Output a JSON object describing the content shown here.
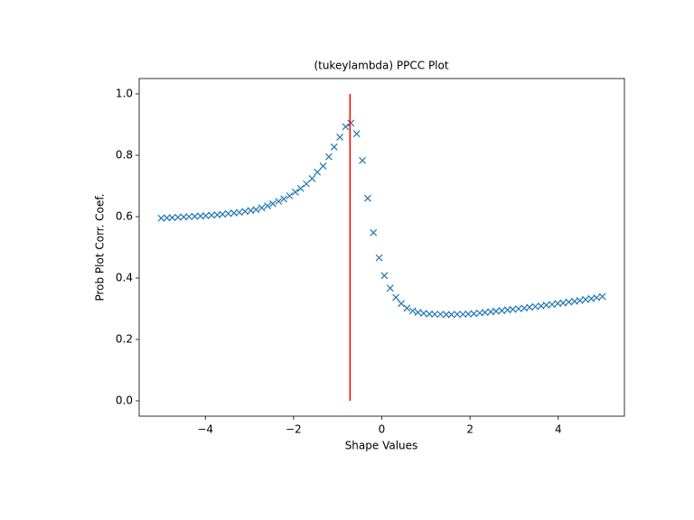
{
  "chart_data": {
    "type": "scatter",
    "title": "(tukeylambda) PPCC Plot",
    "x_label": "Shape Values",
    "y_label": "Prob Plot Corr. Coef.",
    "xlim": [
      -5.5,
      5.5
    ],
    "ylim": [
      -0.05,
      1.05
    ],
    "xticks": [
      {
        "value": -4,
        "label": "−4"
      },
      {
        "value": -2,
        "label": "−2"
      },
      0,
      2,
      4
    ],
    "yticks": [
      {
        "value": 0,
        "label": "0.0"
      },
      0.2,
      0.4,
      0.6,
      0.8,
      {
        "value": 1,
        "label": "1.0"
      }
    ],
    "marker": "x",
    "series": [
      {
        "color": "#1f77b4",
        "x": [
          -5.0,
          -4.87,
          -4.75,
          -4.62,
          -4.49,
          -4.37,
          -4.24,
          -4.11,
          -3.99,
          -3.86,
          -3.73,
          -3.61,
          -3.48,
          -3.35,
          -3.23,
          -3.1,
          -2.97,
          -2.85,
          -2.72,
          -2.59,
          -2.47,
          -2.34,
          -2.22,
          -2.09,
          -1.96,
          -1.84,
          -1.71,
          -1.58,
          -1.46,
          -1.33,
          -1.2,
          -1.08,
          -0.95,
          -0.82,
          -0.7,
          -0.57,
          -0.44,
          -0.32,
          -0.19,
          -0.06,
          0.06,
          0.19,
          0.32,
          0.44,
          0.57,
          0.7,
          0.82,
          0.95,
          1.08,
          1.2,
          1.33,
          1.46,
          1.58,
          1.71,
          1.84,
          1.96,
          2.09,
          2.22,
          2.34,
          2.47,
          2.59,
          2.72,
          2.85,
          2.97,
          3.1,
          3.23,
          3.35,
          3.48,
          3.61,
          3.73,
          3.86,
          3.99,
          4.11,
          4.24,
          4.37,
          4.49,
          4.62,
          4.75,
          4.87,
          5.0
        ],
        "values": [
          0.595,
          0.596,
          0.597,
          0.598,
          0.599,
          0.6,
          0.601,
          0.602,
          0.603,
          0.605,
          0.606,
          0.608,
          0.61,
          0.612,
          0.614,
          0.617,
          0.62,
          0.623,
          0.629,
          0.635,
          0.642,
          0.65,
          0.658,
          0.668,
          0.68,
          0.692,
          0.707,
          0.724,
          0.745,
          0.765,
          0.795,
          0.827,
          0.859,
          0.893,
          0.905,
          0.87,
          0.783,
          0.66,
          0.548,
          0.466,
          0.408,
          0.367,
          0.337,
          0.317,
          0.302,
          0.293,
          0.288,
          0.285,
          0.283,
          0.282,
          0.282,
          0.281,
          0.281,
          0.282,
          0.282,
          0.283,
          0.284,
          0.286,
          0.288,
          0.29,
          0.292,
          0.294,
          0.296,
          0.298,
          0.3,
          0.302,
          0.305,
          0.307,
          0.309,
          0.312,
          0.314,
          0.317,
          0.319,
          0.322,
          0.324,
          0.327,
          0.33,
          0.333,
          0.336,
          0.34
        ]
      }
    ],
    "vline": {
      "x": -0.72,
      "ymin": 0,
      "ymax": 1,
      "color": "#ff0000"
    }
  }
}
